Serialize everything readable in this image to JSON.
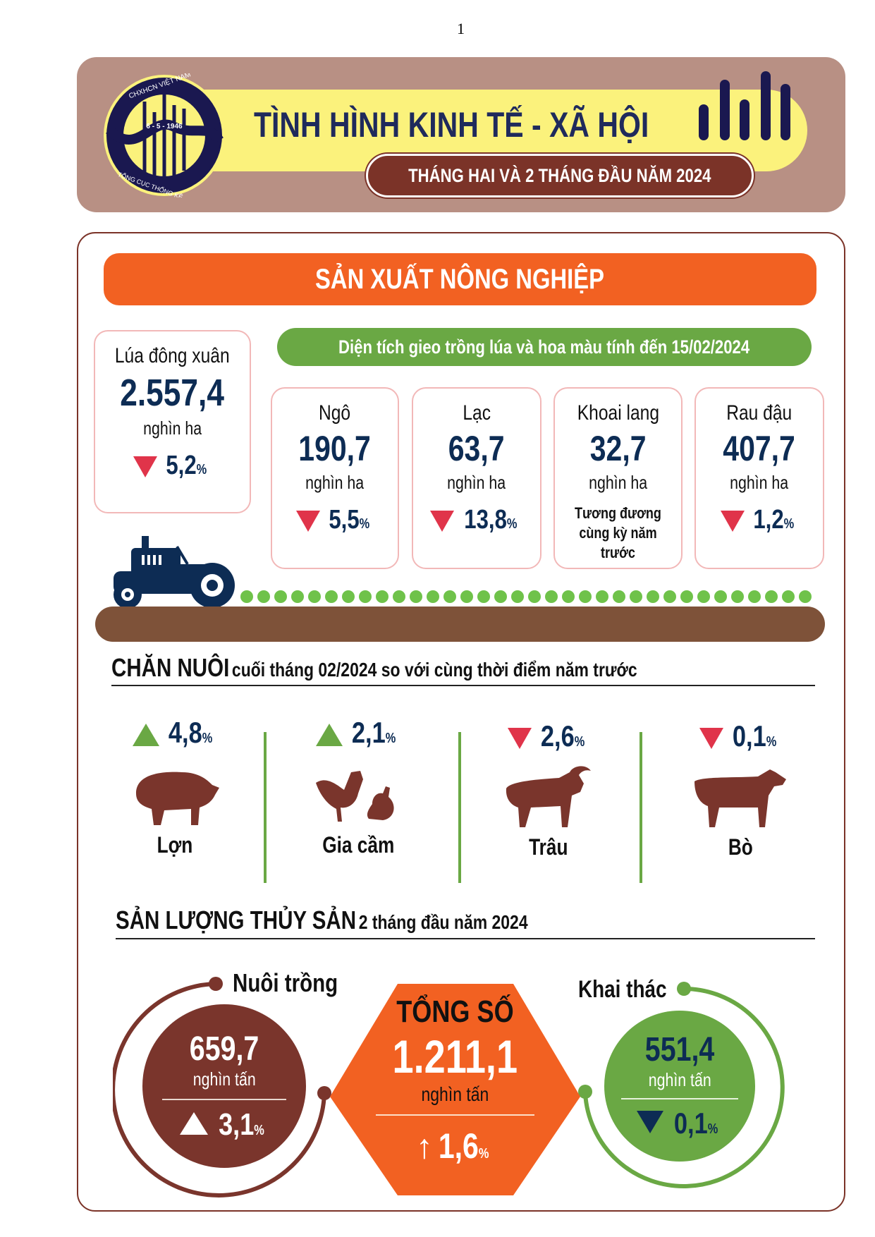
{
  "page_number": "1",
  "header": {
    "title": "TÌNH HÌNH KINH TẾ - XÃ HỘI",
    "subtitle": "THÁNG HAI VÀ 2 THÁNG ĐẦU NĂM 2024",
    "logo_text_top": "CHXHCN VIỆT NAM",
    "logo_date": "6 - 5 - 1946",
    "logo_text_bottom": "TỔNG CỤC THỐNG KÊ"
  },
  "colors": {
    "brown": "#7b3328",
    "orange": "#f26122",
    "green": "#6aa844",
    "navy": "#0d2c54",
    "yellow": "#fbf27c",
    "red": "#e0344a"
  },
  "agri": {
    "banner": "SẢN XUẤT NÔNG NGHIỆP",
    "subtitle": "Diện tích gieo trồng lúa và hoa màu tính đến 15/02/2024",
    "rice": {
      "name": "Lúa đông xuân",
      "value": "2.557,4",
      "unit": "nghìn ha",
      "change": "5,2",
      "pct": "%",
      "direction": "down"
    },
    "crops": [
      {
        "name": "Ngô",
        "value": "190,7",
        "unit": "nghìn ha",
        "change": "5,5",
        "pct": "%",
        "direction": "down"
      },
      {
        "name": "Lạc",
        "value": "63,7",
        "unit": "nghìn ha",
        "change": "13,8",
        "pct": "%",
        "direction": "down"
      },
      {
        "name": "Khoai lang",
        "value": "32,7",
        "unit": "nghìn ha",
        "note": "Tương đương cùng kỳ năm trước"
      },
      {
        "name": "Rau đậu",
        "value": "407,7",
        "unit": "nghìn ha",
        "change": "1,2",
        "pct": "%",
        "direction": "down"
      }
    ]
  },
  "livestock": {
    "title": "CHĂN NUÔI",
    "subtitle": "cuối tháng 02/2024 so với cùng thời điểm năm trước",
    "items": [
      {
        "label": "Lợn",
        "change": "4,8",
        "pct": "%",
        "direction": "up"
      },
      {
        "label": "Gia cầm",
        "change": "2,1",
        "pct": "%",
        "direction": "up"
      },
      {
        "label": "Trâu",
        "change": "2,6",
        "pct": "%",
        "direction": "down"
      },
      {
        "label": "Bò",
        "change": "0,1",
        "pct": "%",
        "direction": "down"
      }
    ]
  },
  "fishery": {
    "title": "SẢN LƯỢNG THỦY SẢN",
    "subtitle": "2 tháng đầu năm 2024",
    "aquaculture": {
      "label": "Nuôi trồng",
      "value": "659,7",
      "unit": "nghìn tấn",
      "change": "3,1",
      "pct": "%",
      "direction": "up"
    },
    "total": {
      "label": "TỔNG SỐ",
      "value": "1.211,1",
      "unit": "nghìn tấn",
      "change": "1,6",
      "pct": "%",
      "direction": "up"
    },
    "capture": {
      "label": "Khai thác",
      "value": "551,4",
      "unit": "nghìn tấn",
      "change": "0,1",
      "pct": "%",
      "direction": "down"
    }
  }
}
